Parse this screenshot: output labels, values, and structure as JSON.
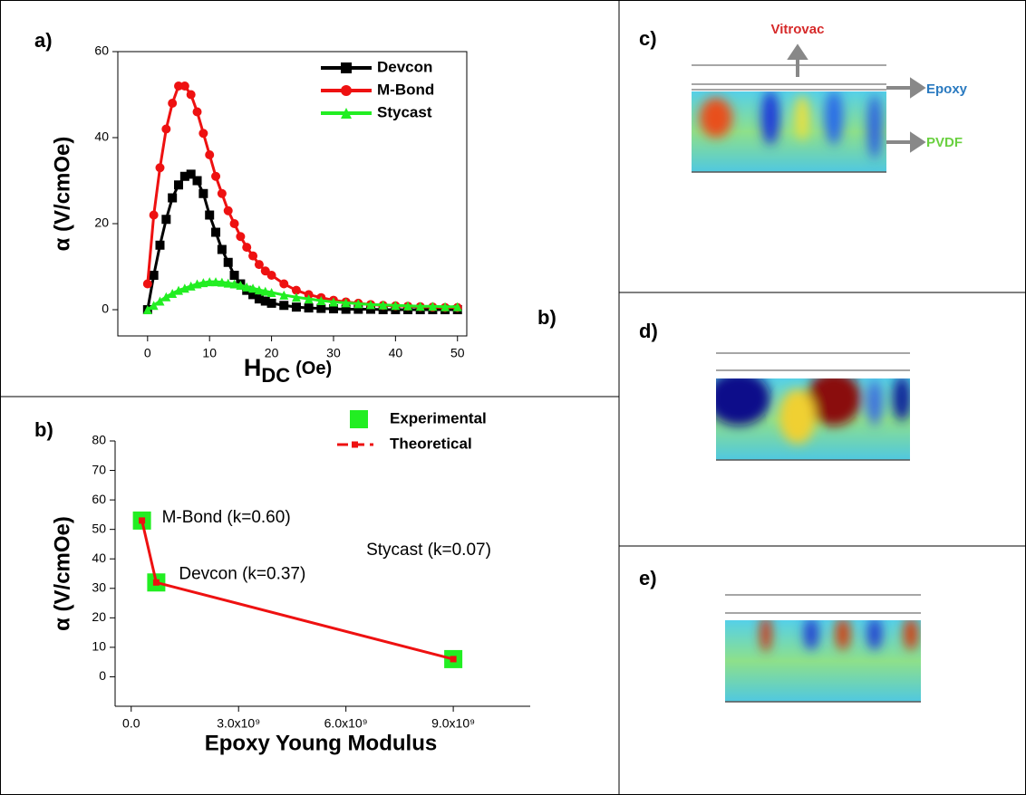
{
  "chart_data": [
    {
      "type": "line",
      "label": "a)",
      "extra_label": "b)",
      "y_label": "α (V/cmOe)",
      "x_label": "H",
      "x_label_sub": "DC",
      "x_label_unit": "(Oe)",
      "x": [
        0,
        1,
        2,
        3,
        4,
        5,
        6,
        7,
        8,
        9,
        10,
        11,
        12,
        13,
        14,
        15,
        16,
        17,
        18,
        19,
        20,
        22,
        24,
        26,
        28,
        30,
        32,
        34,
        36,
        38,
        40,
        42,
        44,
        46,
        48,
        50
      ],
      "series": [
        {
          "name": "Devcon",
          "color": "#000000",
          "marker": "square",
          "values": [
            0,
            8,
            15,
            21,
            26,
            29,
            31,
            31.5,
            30,
            27,
            22,
            18,
            14,
            11,
            8,
            6,
            4.5,
            3.5,
            2.5,
            2,
            1.5,
            1,
            0.6,
            0.4,
            0.3,
            0.2,
            0.1,
            0.1,
            0.1,
            0,
            0,
            0,
            0,
            0,
            0,
            0
          ]
        },
        {
          "name": "M-Bond",
          "color": "#ee1111",
          "marker": "circle",
          "values": [
            6,
            22,
            33,
            42,
            48,
            52,
            52,
            50,
            46,
            41,
            36,
            31,
            27,
            23,
            20,
            17,
            14.5,
            12.5,
            10.5,
            9,
            8,
            6,
            4.5,
            3.5,
            2.8,
            2.2,
            1.8,
            1.5,
            1.2,
            1,
            0.9,
            0.8,
            0.7,
            0.6,
            0.5,
            0.5
          ]
        },
        {
          "name": "Stycast",
          "color": "#22ee22",
          "marker": "triangle",
          "values": [
            0,
            1,
            2,
            3,
            3.8,
            4.5,
            5,
            5.5,
            6,
            6.3,
            6.5,
            6.5,
            6.4,
            6.2,
            6,
            5.7,
            5.3,
            5,
            4.6,
            4.3,
            4,
            3.4,
            2.9,
            2.5,
            2.1,
            1.8,
            1.6,
            1.4,
            1.2,
            1.1,
            1,
            0.9,
            0.8,
            0.8,
            0.7,
            0.7
          ]
        }
      ],
      "xlim": [
        -4.8,
        51.5
      ],
      "xticks": [
        0,
        10,
        20,
        30,
        40,
        50
      ],
      "ylim": [
        -6.1,
        60
      ],
      "yticks": [
        0,
        20,
        40,
        60
      ],
      "legend": "upper right"
    },
    {
      "type": "scatter",
      "label": "b)",
      "y_label": "α (V/cmOe)",
      "x_label": "Epoxy Young Modulus",
      "x": [
        300000000,
        700000000,
        9000000000
      ],
      "series": [
        {
          "name": "Experimental",
          "color": "#22ee22",
          "style": "markers",
          "values": [
            53,
            32,
            6
          ]
        },
        {
          "name": "Theoretical",
          "color": "#ee1111",
          "style": "line",
          "values": [
            53,
            32,
            6
          ]
        }
      ],
      "annotations": [
        "M-Bond (k=0.60)",
        "Devcon (k=0.37)",
        "Stycast (k=0.07)"
      ],
      "xlim": [
        -450000000,
        11150000000
      ],
      "xticks": [
        {
          "value": 0,
          "label": "0.0"
        },
        {
          "value": 3000000000,
          "label": "3.0x10⁹"
        },
        {
          "value": 6000000000,
          "label": "6.0x10⁹"
        },
        {
          "value": 9000000000,
          "label": "9.0x10⁹"
        }
      ],
      "ylim": [
        -10,
        80
      ],
      "yticks": [
        0,
        10,
        20,
        30,
        40,
        50,
        60,
        70,
        80
      ]
    }
  ],
  "panels": [
    {
      "label": "c)",
      "layers": [
        "Vitrovac",
        "Epoxy",
        "PVDF"
      ]
    },
    {
      "label": "d)"
    },
    {
      "label": "e)"
    }
  ]
}
